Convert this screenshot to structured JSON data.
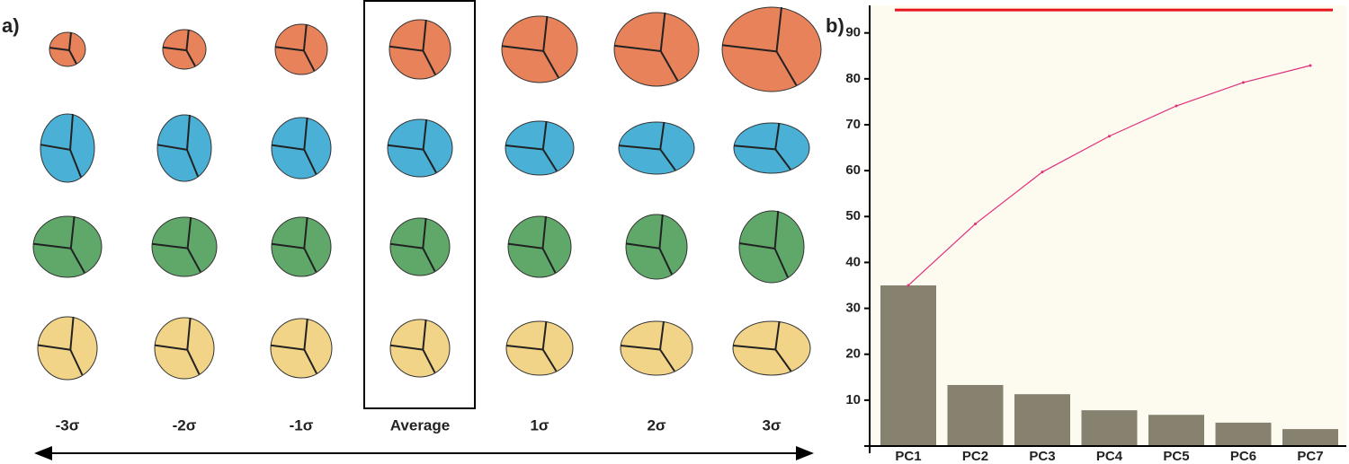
{
  "panel_a": {
    "label": "a)",
    "columns": [
      "-3σ",
      "-2σ",
      "-1σ",
      "Average",
      "1σ",
      "2σ",
      "3σ"
    ]
  },
  "panel_b": {
    "label": "b)"
  },
  "chart_data": {
    "type": "bar",
    "categories": [
      "PC1",
      "PC2",
      "PC3",
      "PC4",
      "PC5",
      "PC6",
      "PC7"
    ],
    "values": [
      35,
      13.3,
      11.3,
      7.8,
      6.8,
      5.1,
      3.7
    ],
    "color": "#878270",
    "line_values": [
      35,
      48.4,
      59.7,
      67.5,
      74.1,
      79.2,
      82.9
    ],
    "line_color": "#e0307a",
    "threshold": 95,
    "threshold_color": "#e8141c",
    "ylim": [
      0,
      96
    ],
    "yticks": [
      10,
      20,
      30,
      40,
      50,
      60,
      70,
      80,
      90
    ]
  }
}
